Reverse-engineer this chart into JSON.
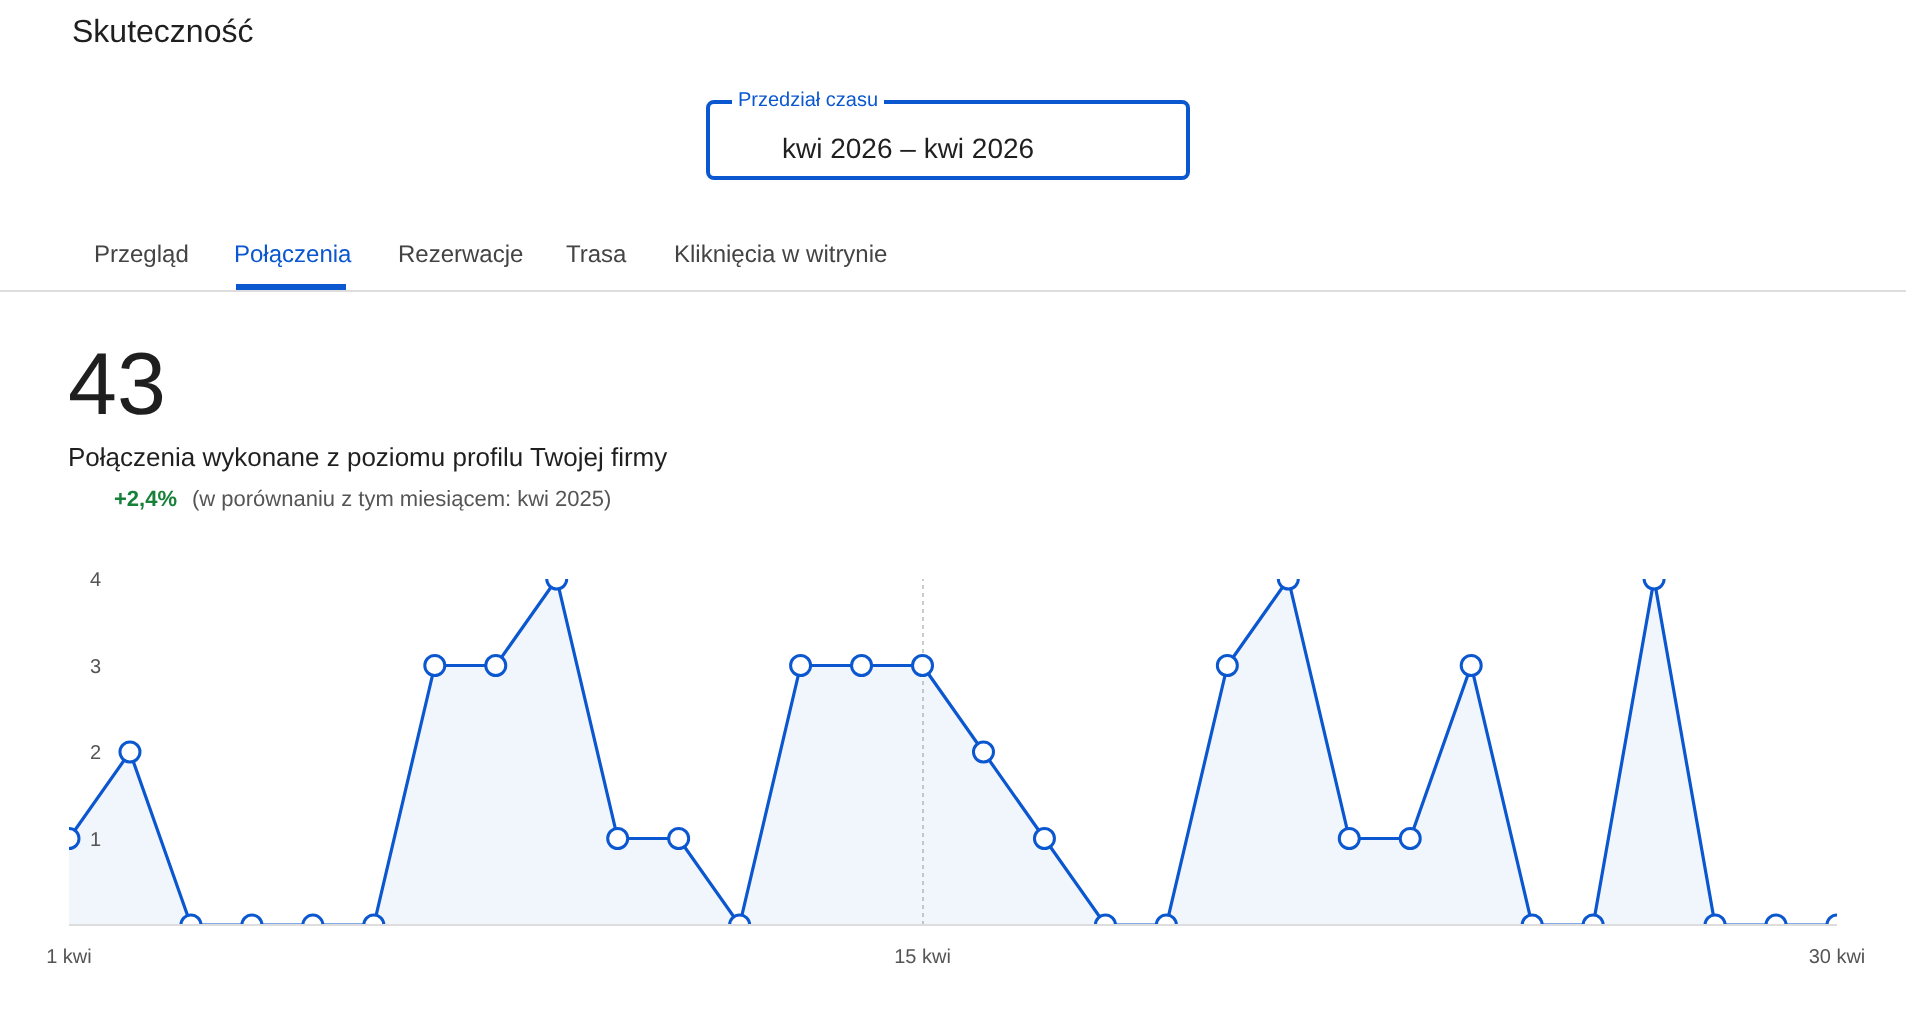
{
  "chart_data": {
    "type": "area",
    "title": "Skuteczność",
    "annotations": [
      "Przedział czasu",
      "kwi 2026 – kwi 2026",
      "Przegląd",
      "Połączenia",
      "Rezerwacje",
      "Trasa",
      "Kliknięcia w witrynie",
      "43",
      "Połączenia wykonane z poziomu profilu Twojej firmy",
      "+2,4%",
      "(w porównaniu z tym miesiącem: kwi 2025)"
    ],
    "x": [
      1,
      2,
      3,
      4,
      5,
      6,
      7,
      8,
      9,
      10,
      11,
      12,
      13,
      14,
      15,
      16,
      17,
      18,
      19,
      20,
      21,
      22,
      23,
      24,
      25,
      26,
      27,
      28,
      29,
      30
    ],
    "series": [
      {
        "color": "#0b57d0",
        "values": [
          1,
          2,
          0,
          0,
          0,
          0,
          3,
          3,
          4,
          1,
          1,
          0,
          3,
          3,
          3,
          2,
          1,
          0,
          0,
          3,
          4,
          1,
          1,
          3,
          0,
          0,
          4,
          0,
          0,
          0
        ]
      }
    ],
    "xlim": [
      1,
      30
    ],
    "xticks": [
      {
        "value": 1,
        "label": "1 kwi"
      },
      {
        "value": 15,
        "label": "15 kwi"
      },
      {
        "value": 30,
        "label": "30 kwi"
      }
    ],
    "ylim": [
      0,
      4
    ],
    "yticks": [
      1,
      2,
      3,
      4
    ],
    "grid": "x",
    "marker": "circle",
    "line_style": "solid"
  }
}
